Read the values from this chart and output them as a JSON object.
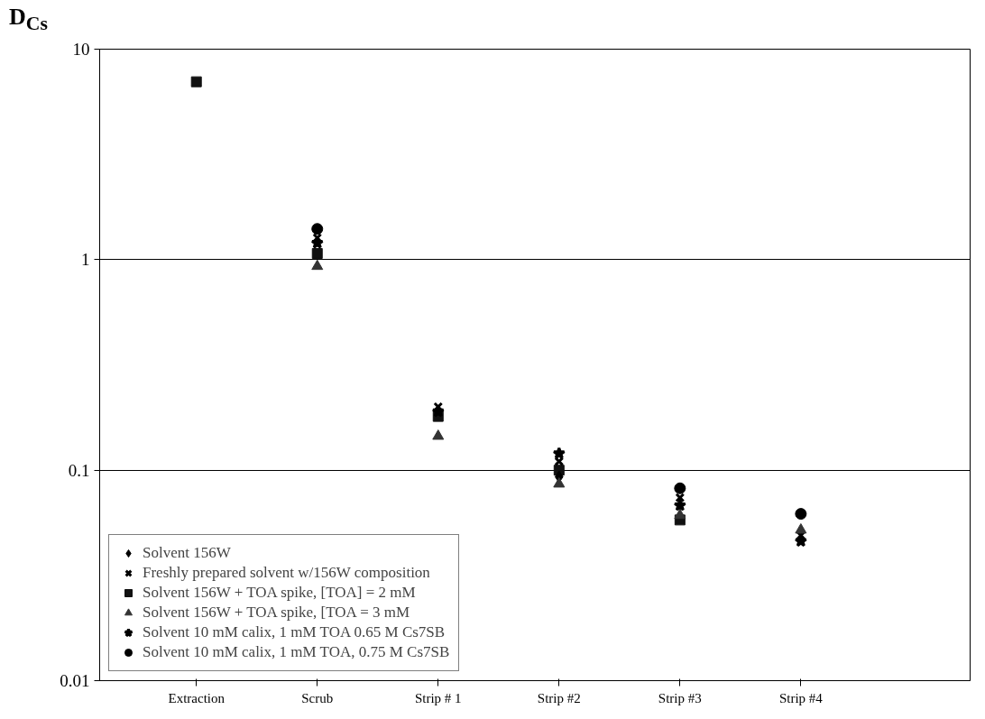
{
  "chart_data": {
    "type": "scatter",
    "ylabel": "D$_{Cs}$",
    "categories": [
      "Extraction",
      "Scrub",
      "Strip # 1",
      "Strip #2",
      "Strip #3",
      "Strip #4"
    ],
    "log": true,
    "ylim": [
      0.01,
      10
    ],
    "yticks": [
      0.01,
      0.1,
      1,
      10
    ],
    "grid": "y",
    "legend": "bottom left",
    "series": [
      {
        "name": "Solvent 156W",
        "color": "#000000",
        "marker": "diamond",
        "values": [
          null,
          null,
          null,
          0.093,
          null,
          null
        ]
      },
      {
        "name": "Freshly prepared solvent w/156W composition",
        "color": "#000000",
        "marker": "cross",
        "values": [
          null,
          1.27,
          0.2,
          0.11,
          0.074,
          0.049
        ]
      },
      {
        "name": "Solvent 156W + TOA spike, [TOA] = 2 mM",
        "color": "#111111",
        "marker": "square",
        "values": [
          7.0,
          1.07,
          0.18,
          0.1,
          0.058,
          null
        ]
      },
      {
        "name": "Solvent 156W + TOA spike, [TOA = 3 mM",
        "color": "#333333",
        "marker": "triangle",
        "values": [
          null,
          0.93,
          0.145,
          0.086,
          0.061,
          0.052
        ]
      },
      {
        "name": "Solvent 10 mM calix, 1 mM TOA 0.65 M Cs7SB",
        "color": "#000000",
        "marker": "star",
        "values": [
          null,
          1.2,
          0.19,
          0.12,
          0.068,
          0.046
        ]
      },
      {
        "name": "Solvent 10 mM calix, 1 mM TOA, 0.75 M Cs7SB",
        "color": "#000000",
        "marker": "circle",
        "values": [
          null,
          1.4,
          null,
          null,
          0.082,
          0.062
        ]
      }
    ]
  }
}
